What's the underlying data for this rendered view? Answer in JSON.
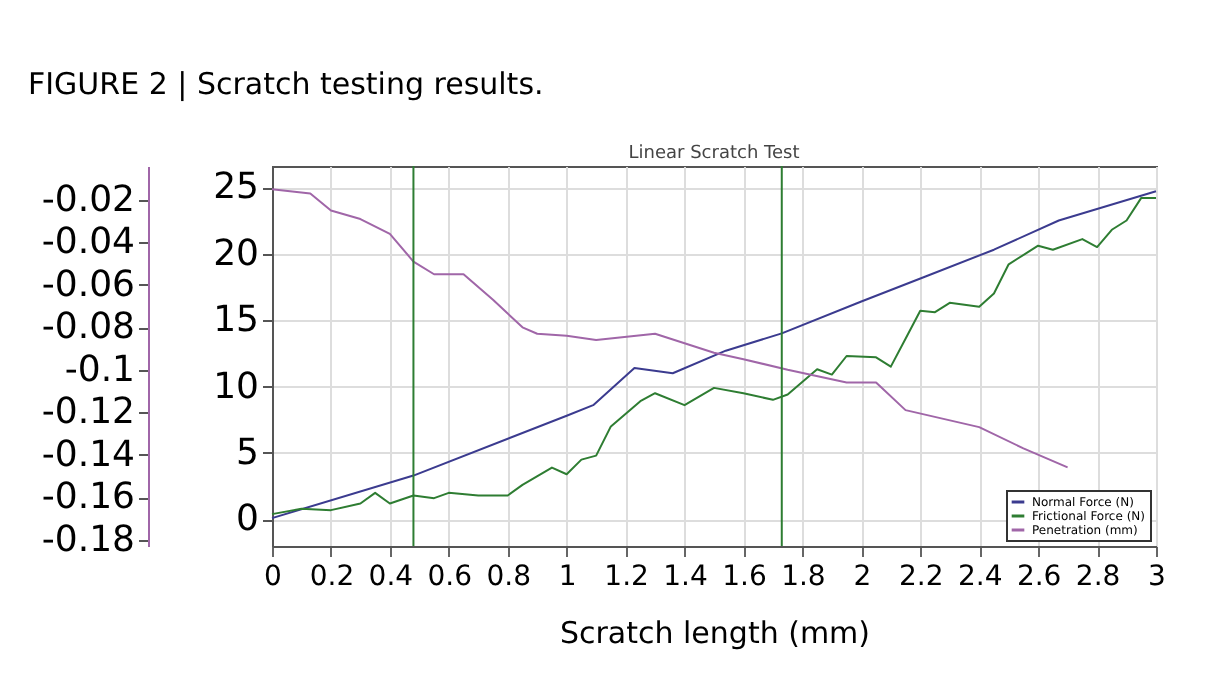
{
  "chart_data": {
    "type": "line",
    "title": "FIGURE 2 | Scratch testing results.",
    "subtitle": "Linear Scratch Test",
    "xlabel": "Scratch length (mm)",
    "xlim": [
      0,
      3
    ],
    "xticks": [
      0,
      0.2,
      0.4,
      0.6,
      0.8,
      1,
      1.2,
      1.4,
      1.6,
      1.8,
      2,
      2.2,
      2.4,
      2.6,
      2.8,
      3
    ],
    "ylim": [
      -2,
      26.6
    ],
    "yticks": [
      0,
      5,
      10,
      15,
      20,
      25
    ],
    "y2lim": [
      -0.183,
      -0.004
    ],
    "y2ticks": [
      -0.02,
      -0.04,
      -0.06,
      -0.08,
      -0.1,
      -0.12,
      -0.14,
      -0.16,
      -0.18
    ],
    "grid": true,
    "legend": "bottom right",
    "marker": "none",
    "line_style": "solid",
    "ref_lines": [
      {
        "axis": "x",
        "value": 0.48,
        "color": "#2e7d32"
      },
      {
        "axis": "x",
        "value": 1.73,
        "color": "#2e7d32"
      }
    ],
    "series": [
      {
        "name": "Normal Force (N)",
        "color": "#3b3b8f",
        "x": [
          0,
          0.48,
          1.0,
          1.09,
          1.23,
          1.36,
          1.54,
          1.73,
          2.0,
          2.22,
          2.45,
          2.67,
          3.0
        ],
        "values": [
          0.1,
          3.3,
          7.8,
          8.6,
          11.4,
          11.0,
          12.7,
          14.0,
          16.4,
          18.3,
          20.3,
          22.5,
          24.7
        ]
      },
      {
        "name": "Frictional Force (N)",
        "color": "#2e7d32",
        "x": [
          0,
          0.1,
          0.2,
          0.3,
          0.35,
          0.4,
          0.48,
          0.55,
          0.6,
          0.7,
          0.8,
          0.85,
          0.95,
          1.0,
          1.05,
          1.1,
          1.15,
          1.25,
          1.3,
          1.4,
          1.5,
          1.6,
          1.7,
          1.75,
          1.85,
          1.9,
          1.95,
          2.05,
          2.1,
          2.15,
          2.2,
          2.25,
          2.3,
          2.4,
          2.45,
          2.5,
          2.6,
          2.65,
          2.75,
          2.8,
          2.85,
          2.9,
          2.95,
          3.0
        ],
        "values": [
          0.4,
          0.8,
          0.7,
          1.2,
          2.0,
          1.2,
          1.8,
          1.6,
          2.0,
          1.8,
          1.8,
          2.6,
          3.9,
          3.4,
          4.5,
          4.8,
          7.0,
          8.9,
          9.5,
          8.6,
          9.9,
          9.5,
          9.0,
          9.4,
          11.3,
          10.9,
          12.3,
          12.2,
          11.5,
          13.6,
          15.7,
          15.6,
          16.3,
          16.0,
          17.0,
          19.2,
          20.6,
          20.3,
          21.1,
          20.5,
          21.8,
          22.5,
          24.2,
          24.2
        ]
      },
      {
        "name": "Penetration (mm)",
        "color": "#a066a8",
        "axis": "y2",
        "x": [
          0,
          0.13,
          0.2,
          0.3,
          0.4,
          0.48,
          0.55,
          0.65,
          0.75,
          0.85,
          0.9,
          1.0,
          1.1,
          1.3,
          1.5,
          1.6,
          1.75,
          1.95,
          2.05,
          2.15,
          2.4,
          2.55,
          2.7
        ],
        "values": [
          -0.015,
          -0.017,
          -0.025,
          -0.029,
          -0.036,
          -0.049,
          -0.055,
          -0.055,
          -0.067,
          -0.08,
          -0.083,
          -0.084,
          -0.086,
          -0.083,
          -0.092,
          -0.095,
          -0.1,
          -0.106,
          -0.106,
          -0.119,
          -0.127,
          -0.137,
          -0.146
        ]
      }
    ]
  }
}
